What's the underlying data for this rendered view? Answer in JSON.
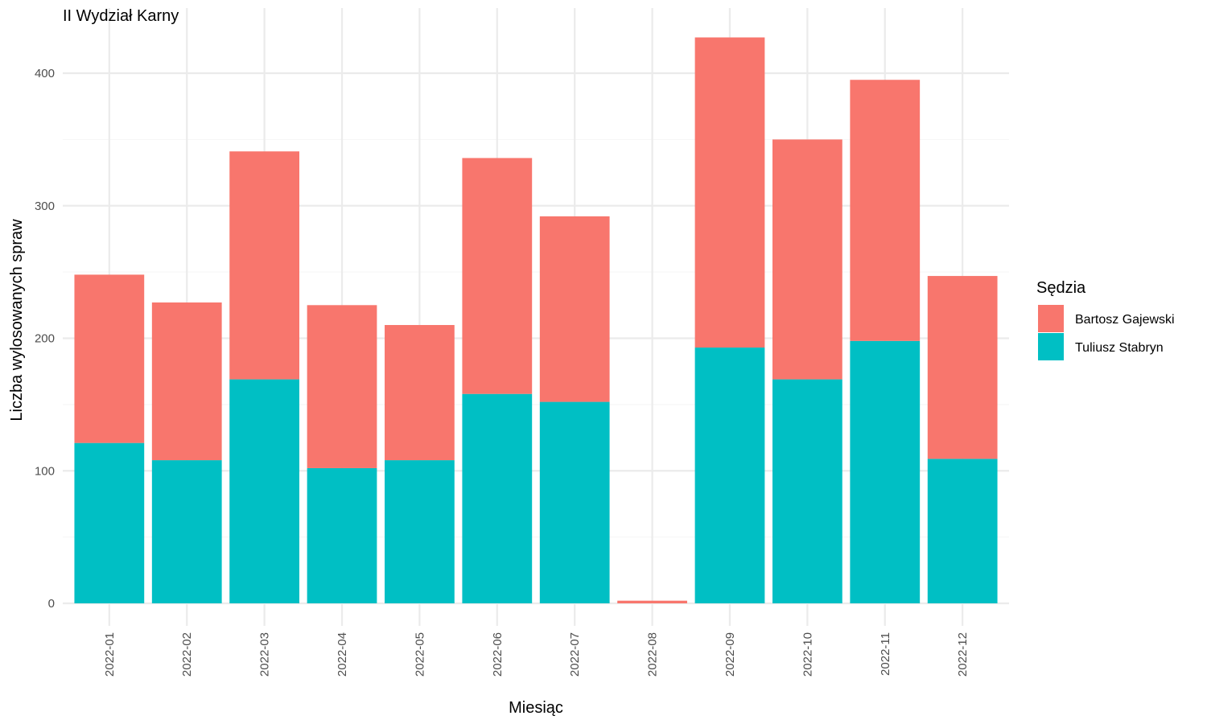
{
  "chart_data": {
    "type": "bar",
    "stacked": true,
    "title": "II Wydział Karny",
    "xlabel": "Miesiąc",
    "ylabel": "Liczba wylosowanych spraw",
    "categories": [
      "2022-01",
      "2022-02",
      "2022-03",
      "2022-04",
      "2022-05",
      "2022-06",
      "2022-07",
      "2022-08",
      "2022-09",
      "2022-10",
      "2022-11",
      "2022-12"
    ],
    "series": [
      {
        "name": "Tuliusz Stabryn",
        "color": "#00BFC4",
        "values": [
          121,
          108,
          169,
          102,
          108,
          158,
          152,
          0,
          193,
          169,
          198,
          109
        ]
      },
      {
        "name": "Bartosz Gajewski",
        "color": "#F8766D",
        "values": [
          127,
          119,
          172,
          123,
          102,
          178,
          140,
          2,
          234,
          181,
          197,
          138
        ]
      }
    ],
    "ylim": [
      0,
      445
    ],
    "yticks": [
      0,
      100,
      200,
      300,
      400
    ],
    "grid": true,
    "legend": {
      "title": "Sędzia",
      "position": "right",
      "order": [
        "Bartosz Gajewski",
        "Tuliusz Stabryn"
      ]
    }
  }
}
